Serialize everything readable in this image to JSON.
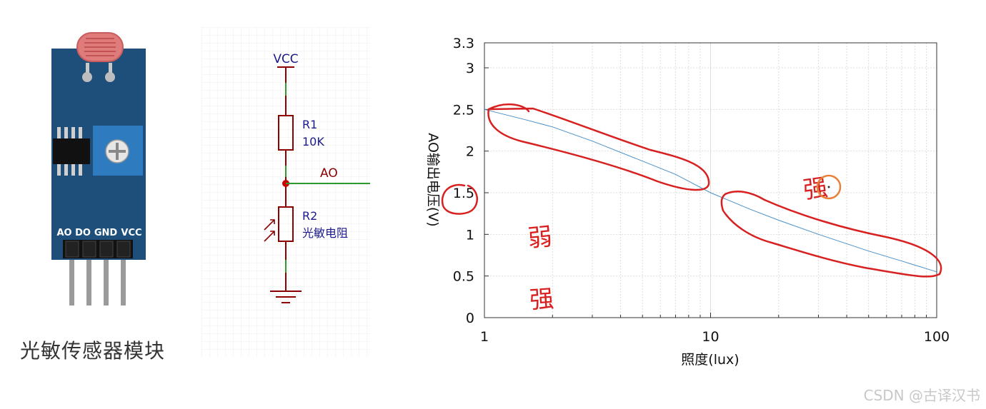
{
  "module": {
    "pin_labels": [
      "AO",
      "DO",
      "GND",
      "VCC"
    ],
    "caption": "光敏传感器模块"
  },
  "schematic": {
    "vcc_label": "VCC",
    "r1_name": "R1",
    "r1_value": "10K",
    "ao_label": "AO",
    "r2_name": "R2",
    "r2_value": "光敏电阻"
  },
  "chart_data": {
    "type": "line",
    "title": "",
    "xlabel": "照度(lux)",
    "ylabel": "AO输出电压(V)",
    "xscale": "log",
    "xlim": [
      1,
      100
    ],
    "ylim": [
      0,
      3.3
    ],
    "xticks": [
      "1",
      "10",
      "100"
    ],
    "yticks": [
      "0",
      "0.5",
      "1",
      "1.5",
      "2",
      "2.5",
      "3",
      "3.3"
    ],
    "grid": true,
    "series": [
      {
        "color": "#4a90c8",
        "x": [
          1,
          1.5,
          2,
          3,
          5,
          7,
          10,
          15,
          20,
          30,
          50,
          70,
          100
        ],
        "y": [
          2.5,
          2.38,
          2.29,
          2.12,
          1.88,
          1.72,
          1.5,
          1.3,
          1.17,
          1.0,
          0.8,
          0.68,
          0.55
        ]
      }
    ],
    "annotations": {
      "circled_tick": "1.5",
      "handwritten": [
        "弱",
        "强",
        "强"
      ]
    }
  },
  "watermark": "CSDN @古译汉书"
}
